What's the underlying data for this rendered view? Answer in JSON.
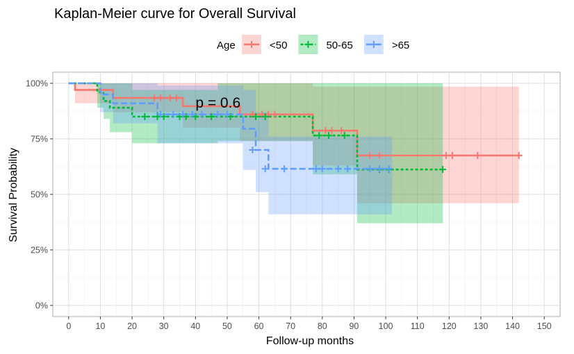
{
  "chart_data": {
    "type": "line",
    "title": "Kaplan-Meier curve for Overall Survival",
    "xlabel": "Follow-up months",
    "ylabel": "Survival Probability",
    "xlim": [
      -5,
      155
    ],
    "ylim": [
      -0.05,
      1.05
    ],
    "x_ticks": [
      0,
      10,
      20,
      30,
      40,
      50,
      60,
      70,
      80,
      90,
      100,
      110,
      120,
      130,
      140,
      150
    ],
    "y_ticks": [
      {
        "value": 0,
        "label": "0%"
      },
      {
        "value": 0.25,
        "label": "25%"
      },
      {
        "value": 0.5,
        "label": "50%"
      },
      {
        "value": 0.75,
        "label": "75%"
      },
      {
        "value": 1,
        "label": "100%"
      }
    ],
    "grid": true,
    "legend_title": "Age",
    "legend_position": "top",
    "annotation": "p = 0.6",
    "series": [
      {
        "name": "<50",
        "color": "#F8766D",
        "dash": "solid",
        "steps": [
          [
            0,
            1.0
          ],
          [
            2,
            0.97
          ],
          [
            14,
            0.934
          ],
          [
            36,
            0.897
          ],
          [
            54,
            0.86
          ],
          [
            77,
            0.787
          ],
          [
            91,
            0.675
          ],
          [
            142,
            0.675
          ]
        ],
        "ci": [
          [
            0,
            1.0,
            1.0
          ],
          [
            2,
            0.91,
            1.0
          ],
          [
            14,
            0.87,
            1.0
          ],
          [
            36,
            0.8,
            1.0
          ],
          [
            54,
            0.74,
            1.0
          ],
          [
            77,
            0.63,
            0.985
          ],
          [
            91,
            0.46,
            0.985
          ],
          [
            142,
            0.46,
            0.985
          ]
        ],
        "censored": [
          [
            27,
            0.934
          ],
          [
            29,
            0.934
          ],
          [
            32,
            0.934
          ],
          [
            34,
            0.934
          ],
          [
            58,
            0.86
          ],
          [
            61,
            0.86
          ],
          [
            63,
            0.86
          ],
          [
            65,
            0.86
          ],
          [
            81,
            0.787
          ],
          [
            83,
            0.787
          ],
          [
            86,
            0.787
          ],
          [
            95,
            0.675
          ],
          [
            98,
            0.675
          ],
          [
            119,
            0.675
          ],
          [
            121,
            0.675
          ],
          [
            129,
            0.675
          ],
          [
            142,
            0.675
          ]
        ]
      },
      {
        "name": "50-65",
        "color": "#00BA38",
        "dash": "short",
        "steps": [
          [
            0,
            1.0
          ],
          [
            9,
            0.96
          ],
          [
            11,
            0.92
          ],
          [
            13,
            0.89
          ],
          [
            20,
            0.85
          ],
          [
            47,
            0.85
          ],
          [
            77,
            0.765
          ],
          [
            91,
            0.612
          ],
          [
            118,
            0.612
          ]
        ],
        "ci": [
          [
            0,
            1.0,
            1.0
          ],
          [
            9,
            0.89,
            1.0
          ],
          [
            11,
            0.84,
            1.0
          ],
          [
            13,
            0.78,
            1.0
          ],
          [
            20,
            0.73,
            0.97
          ],
          [
            47,
            0.74,
            1.0
          ],
          [
            77,
            0.59,
            1.0
          ],
          [
            91,
            0.37,
            1.0
          ],
          [
            118,
            0.37,
            1.0
          ]
        ],
        "censored": [
          [
            24,
            0.85
          ],
          [
            28,
            0.85
          ],
          [
            30,
            0.85
          ],
          [
            35,
            0.85
          ],
          [
            37,
            0.85
          ],
          [
            40,
            0.85
          ],
          [
            45,
            0.85
          ],
          [
            51,
            0.85
          ],
          [
            59,
            0.85
          ],
          [
            62,
            0.85
          ],
          [
            79,
            0.765
          ],
          [
            82,
            0.765
          ],
          [
            87,
            0.765
          ],
          [
            98,
            0.612
          ],
          [
            101,
            0.612
          ],
          [
            118,
            0.612
          ]
        ]
      },
      {
        "name": ">65",
        "color": "#619CFF",
        "dash": "long",
        "steps": [
          [
            0,
            1.0
          ],
          [
            10,
            0.95
          ],
          [
            14,
            0.91
          ],
          [
            28,
            0.86
          ],
          [
            55,
            0.795
          ],
          [
            59,
            0.7
          ],
          [
            63,
            0.615
          ],
          [
            102,
            0.615
          ]
        ],
        "ci": [
          [
            0,
            1.0,
            1.0
          ],
          [
            10,
            0.87,
            1.0
          ],
          [
            14,
            0.82,
            1.0
          ],
          [
            28,
            0.73,
            0.99
          ],
          [
            55,
            0.61,
            0.97
          ],
          [
            59,
            0.51,
            0.87
          ],
          [
            63,
            0.41,
            0.76
          ],
          [
            102,
            0.41,
            0.76
          ]
        ],
        "censored": [
          [
            29,
            0.86
          ],
          [
            33,
            0.86
          ],
          [
            36,
            0.86
          ],
          [
            39,
            0.86
          ],
          [
            42,
            0.86
          ],
          [
            47,
            0.86
          ],
          [
            50,
            0.86
          ],
          [
            58,
            0.7
          ],
          [
            62,
            0.615
          ],
          [
            68,
            0.615
          ],
          [
            78,
            0.615
          ],
          [
            80,
            0.615
          ],
          [
            85,
            0.615
          ],
          [
            88,
            0.615
          ],
          [
            95,
            0.615
          ],
          [
            98,
            0.615
          ],
          [
            101,
            0.615
          ]
        ]
      }
    ]
  }
}
